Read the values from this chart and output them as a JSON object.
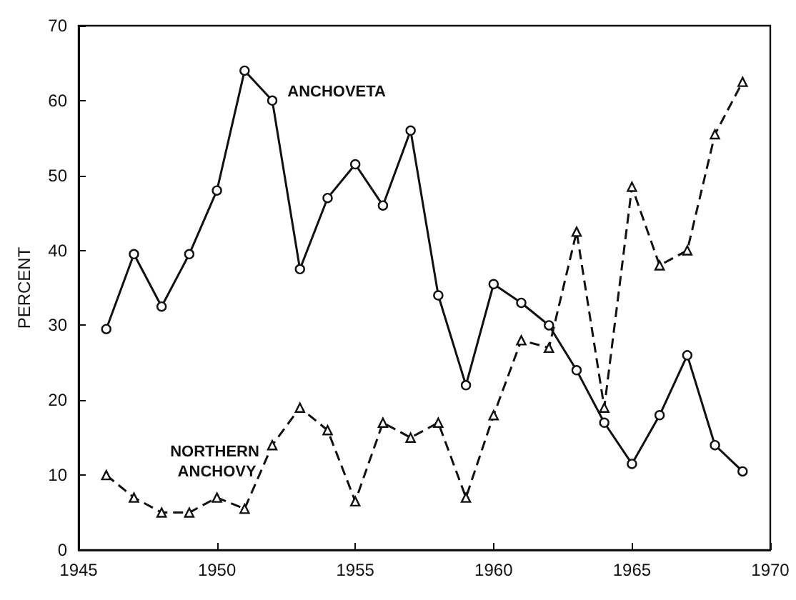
{
  "chart_data": {
    "type": "line",
    "ylabel": "PERCENT",
    "x": [
      1946,
      1947,
      1948,
      1949,
      1950,
      1951,
      1952,
      1953,
      1954,
      1955,
      1956,
      1957,
      1958,
      1959,
      1960,
      1961,
      1962,
      1963,
      1964,
      1965,
      1966,
      1967,
      1968,
      1969
    ],
    "xlim": [
      1945,
      1970
    ],
    "xticks": [
      1945,
      1950,
      1955,
      1960,
      1965,
      1970
    ],
    "ylim": [
      0,
      70
    ],
    "yticks": [
      0,
      10,
      20,
      30,
      40,
      50,
      60,
      70
    ],
    "grid": false,
    "legend": false,
    "series": [
      {
        "name": "ANCHOVETA",
        "color": "#111111",
        "marker": "circle",
        "line_style": "solid",
        "values": [
          29.5,
          39.5,
          32.5,
          39.5,
          48,
          64,
          60,
          37.5,
          47,
          51.5,
          46,
          56,
          34,
          22,
          35.5,
          33,
          30,
          24,
          17,
          11.5,
          18,
          26,
          14,
          10.5
        ]
      },
      {
        "name": "NORTHERN ANCHOVY",
        "color": "#111111",
        "marker": "triangle",
        "line_style": "dashed",
        "values": [
          10,
          7,
          5,
          5,
          7,
          5.5,
          14,
          19,
          16,
          6.5,
          17,
          15,
          17,
          7,
          18,
          28,
          27,
          42.5,
          19,
          48.5,
          38,
          40,
          55.5,
          62.5
        ]
      }
    ]
  }
}
